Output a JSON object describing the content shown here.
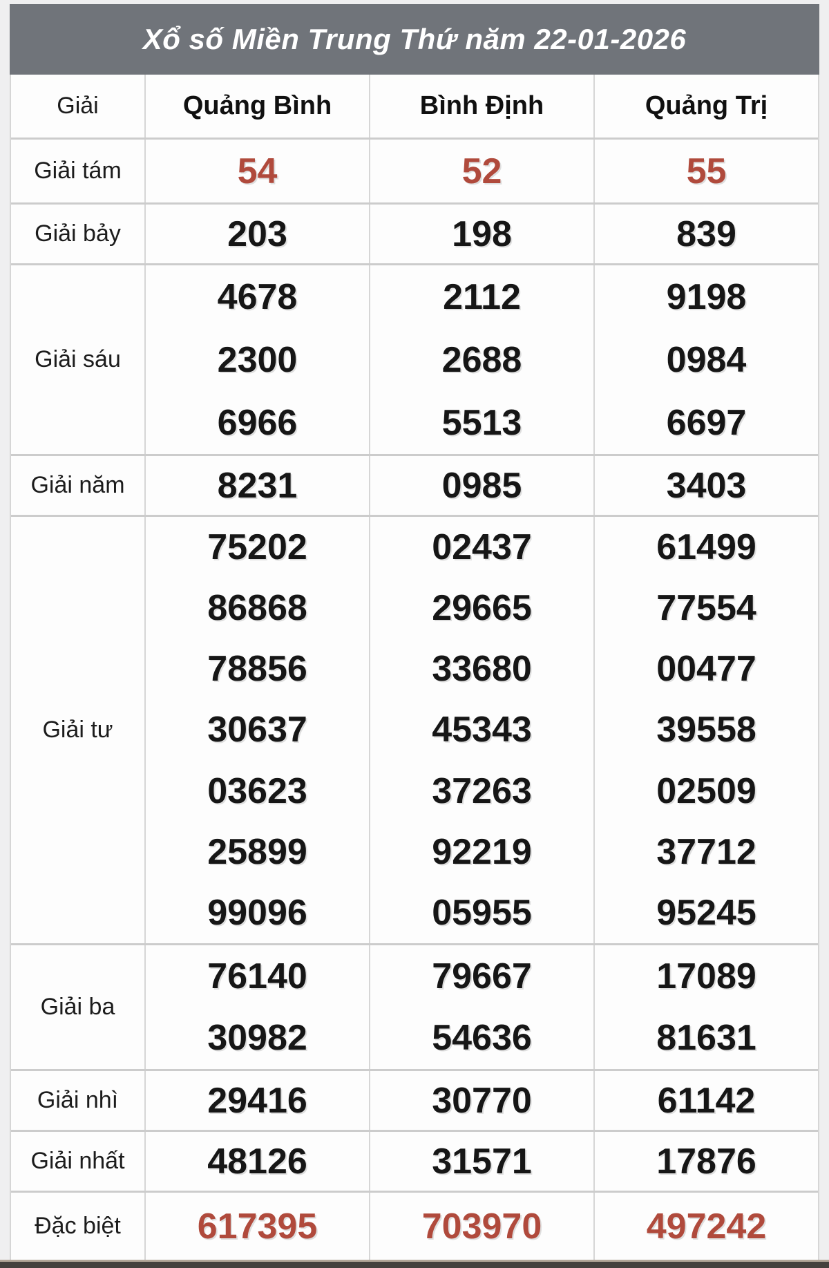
{
  "title": "Xổ số Miền Trung Thứ năm 22-01-2026",
  "colors": {
    "header_bg": "#70747a",
    "header_text": "#ffffff",
    "highlight": "#b04a3c",
    "number_text": "#161616",
    "page_bg": "#efeff0",
    "border": "#cccccc",
    "footer_bar": "#45413d",
    "footer_line": "#b3a698"
  },
  "table": {
    "prize_col_header": "Giải",
    "provinces": [
      "Quảng Bình",
      "Bình Định",
      "Quảng Trị"
    ],
    "rows": [
      {
        "label": "Giải tám",
        "highlight": true,
        "values": [
          [
            "54"
          ],
          [
            "52"
          ],
          [
            "55"
          ]
        ]
      },
      {
        "label": "Giải bảy",
        "highlight": false,
        "values": [
          [
            "203"
          ],
          [
            "198"
          ],
          [
            "839"
          ]
        ]
      },
      {
        "label": "Giải sáu",
        "highlight": false,
        "values": [
          [
            "4678",
            "2300",
            "6966"
          ],
          [
            "2112",
            "2688",
            "5513"
          ],
          [
            "9198",
            "0984",
            "6697"
          ]
        ]
      },
      {
        "label": "Giải năm",
        "highlight": false,
        "values": [
          [
            "8231"
          ],
          [
            "0985"
          ],
          [
            "3403"
          ]
        ]
      },
      {
        "label": "Giải tư",
        "highlight": false,
        "values": [
          [
            "75202",
            "86868",
            "78856",
            "30637",
            "03623",
            "25899",
            "99096"
          ],
          [
            "02437",
            "29665",
            "33680",
            "45343",
            "37263",
            "92219",
            "05955"
          ],
          [
            "61499",
            "77554",
            "00477",
            "39558",
            "02509",
            "37712",
            "95245"
          ]
        ]
      },
      {
        "label": "Giải ba",
        "highlight": false,
        "values": [
          [
            "76140",
            "30982"
          ],
          [
            "79667",
            "54636"
          ],
          [
            "17089",
            "81631"
          ]
        ]
      },
      {
        "label": "Giải nhì",
        "highlight": false,
        "values": [
          [
            "29416"
          ],
          [
            "30770"
          ],
          [
            "61142"
          ]
        ]
      },
      {
        "label": "Giải nhất",
        "highlight": false,
        "values": [
          [
            "48126"
          ],
          [
            "31571"
          ],
          [
            "17876"
          ]
        ]
      },
      {
        "label": "Đặc biệt",
        "highlight": true,
        "values": [
          [
            "617395"
          ],
          [
            "703970"
          ],
          [
            "497242"
          ]
        ]
      }
    ]
  }
}
